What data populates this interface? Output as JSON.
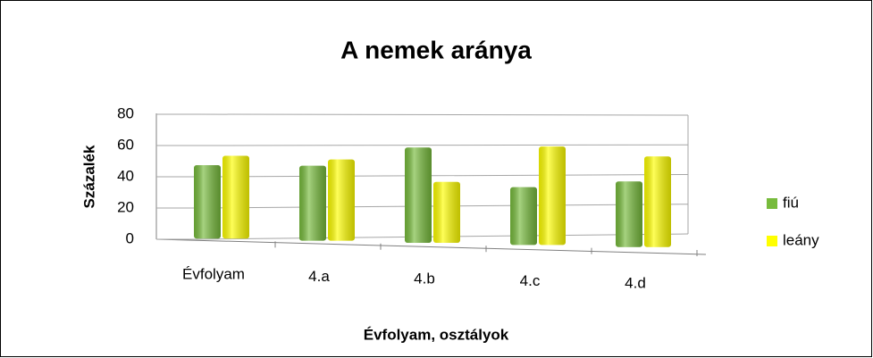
{
  "chart_data": {
    "type": "bar",
    "title": "A nemek aránya",
    "xlabel": "Évfolyam, osztályok",
    "ylabel": "Százalék",
    "categories": [
      "Évfolyam",
      "4.a",
      "4.b",
      "4.c",
      "4.d"
    ],
    "series": [
      {
        "name": "fiú",
        "color": "#77bb3c",
        "values": [
          47,
          48,
          61,
          37,
          42
        ]
      },
      {
        "name": "leány",
        "color": "#ffff00",
        "values": [
          53,
          52,
          39,
          63,
          58
        ]
      }
    ],
    "ylim": [
      0,
      80
    ],
    "yticks": [
      0,
      20,
      40,
      60,
      80
    ],
    "grid": true,
    "legend": "right"
  }
}
